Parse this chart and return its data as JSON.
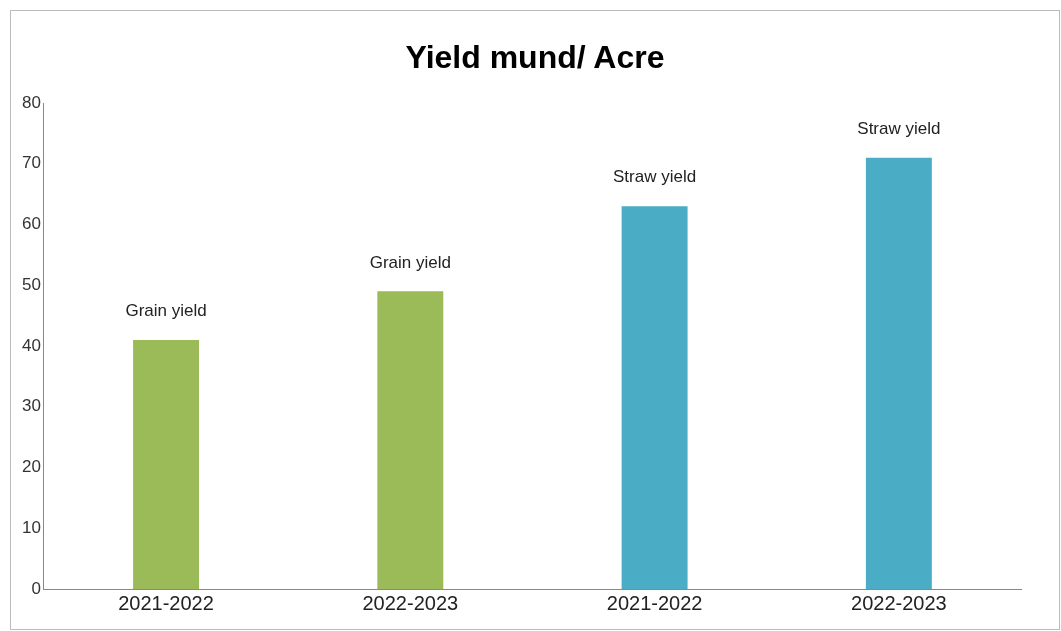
{
  "chart_data": {
    "type": "bar",
    "title": "Yield mund/ Acre",
    "categories": [
      "2021-2022",
      "2022-2023",
      "2021-2022",
      "2022-2023"
    ],
    "values": [
      41,
      49,
      63,
      71
    ],
    "colors": [
      "#9bbb59",
      "#9bbb59",
      "#4bacc6",
      "#4bacc6"
    ],
    "value_labels": [
      "Grain yield",
      "Grain yield",
      "Straw yield",
      "Straw yield"
    ],
    "ylim": [
      0,
      80
    ],
    "yticks": [
      0,
      10,
      20,
      30,
      40,
      50,
      60,
      70,
      80
    ],
    "grid": false,
    "legend": false
  }
}
